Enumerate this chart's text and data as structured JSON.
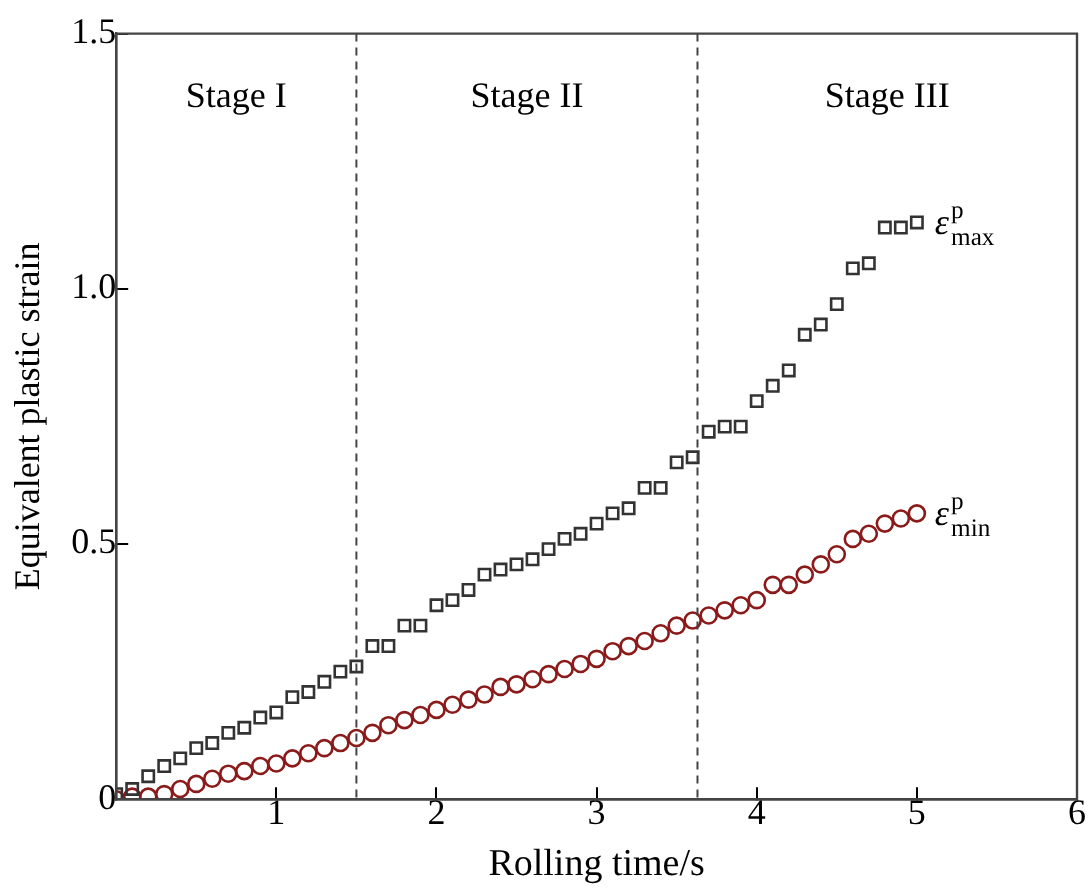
{
  "chart_data": {
    "type": "scatter",
    "xlabel": "Rolling time/s",
    "ylabel": "Equivalent plastic strain",
    "x": [
      0,
      0.1,
      0.2,
      0.3,
      0.4,
      0.5,
      0.6,
      0.7,
      0.8,
      0.9,
      1,
      1.1,
      1.2,
      1.3,
      1.4,
      1.5,
      1.6,
      1.7,
      1.8,
      1.9,
      2,
      2.1,
      2.2,
      2.3,
      2.4,
      2.5,
      2.6,
      2.7,
      2.8,
      2.9,
      3,
      3.1,
      3.2,
      3.3,
      3.4,
      3.5,
      3.6,
      3.7,
      3.8,
      3.9,
      4,
      4.1,
      4.2,
      4.3,
      4.4,
      4.5,
      4.6,
      4.7,
      4.8,
      4.9,
      5
    ],
    "series": [
      {
        "name": "ε$^{p}$$_{max}$",
        "color": "#333333",
        "marker": "square",
        "values": [
          0.01,
          0.02,
          0.045,
          0.065,
          0.08,
          0.1,
          0.11,
          0.13,
          0.14,
          0.16,
          0.17,
          0.2,
          0.21,
          0.23,
          0.25,
          0.26,
          0.3,
          0.3,
          0.34,
          0.34,
          0.38,
          0.39,
          0.41,
          0.44,
          0.45,
          0.46,
          0.47,
          0.49,
          0.51,
          0.52,
          0.54,
          0.56,
          0.57,
          0.61,
          0.61,
          0.66,
          0.67,
          0.72,
          0.73,
          0.73,
          0.78,
          0.81,
          0.84,
          0.91,
          0.93,
          0.97,
          1.04,
          1.05,
          1.12,
          1.12,
          1.13
        ]
      },
      {
        "name": "ε$^{p}$$_{min}$",
        "color": "#8b1a1a",
        "marker": "circle",
        "values": [
          0,
          0.005,
          0.005,
          0.01,
          0.02,
          0.03,
          0.04,
          0.05,
          0.055,
          0.065,
          0.07,
          0.08,
          0.09,
          0.1,
          0.11,
          0.12,
          0.13,
          0.145,
          0.155,
          0.165,
          0.175,
          0.185,
          0.195,
          0.205,
          0.22,
          0.225,
          0.235,
          0.245,
          0.255,
          0.265,
          0.275,
          0.29,
          0.3,
          0.31,
          0.325,
          0.34,
          0.35,
          0.36,
          0.37,
          0.38,
          0.39,
          0.42,
          0.42,
          0.44,
          0.46,
          0.48,
          0.51,
          0.52,
          0.54,
          0.55,
          0.56
        ]
      }
    ],
    "xlim": [
      0,
      6
    ],
    "xticks": [
      {
        "value": 0,
        "label": null
      },
      1,
      2,
      3,
      4,
      5,
      6
    ],
    "ylim": [
      0,
      1.5
    ],
    "yticks": [
      0,
      0.5,
      {
        "value": 1,
        "label": "1.0"
      },
      {
        "value": 1.5,
        "label": "1.5"
      }
    ],
    "ref_lines": [
      {
        "axis": "x",
        "value": 1.5,
        "line_style": "dashed",
        "color": "#444444"
      },
      {
        "axis": "x",
        "value": 3.63,
        "line_style": "dashed",
        "color": "#444444"
      }
    ],
    "annotations": [
      "Stage I",
      "Stage II",
      "Stage III"
    ],
    "grid": false,
    "legend": false
  }
}
